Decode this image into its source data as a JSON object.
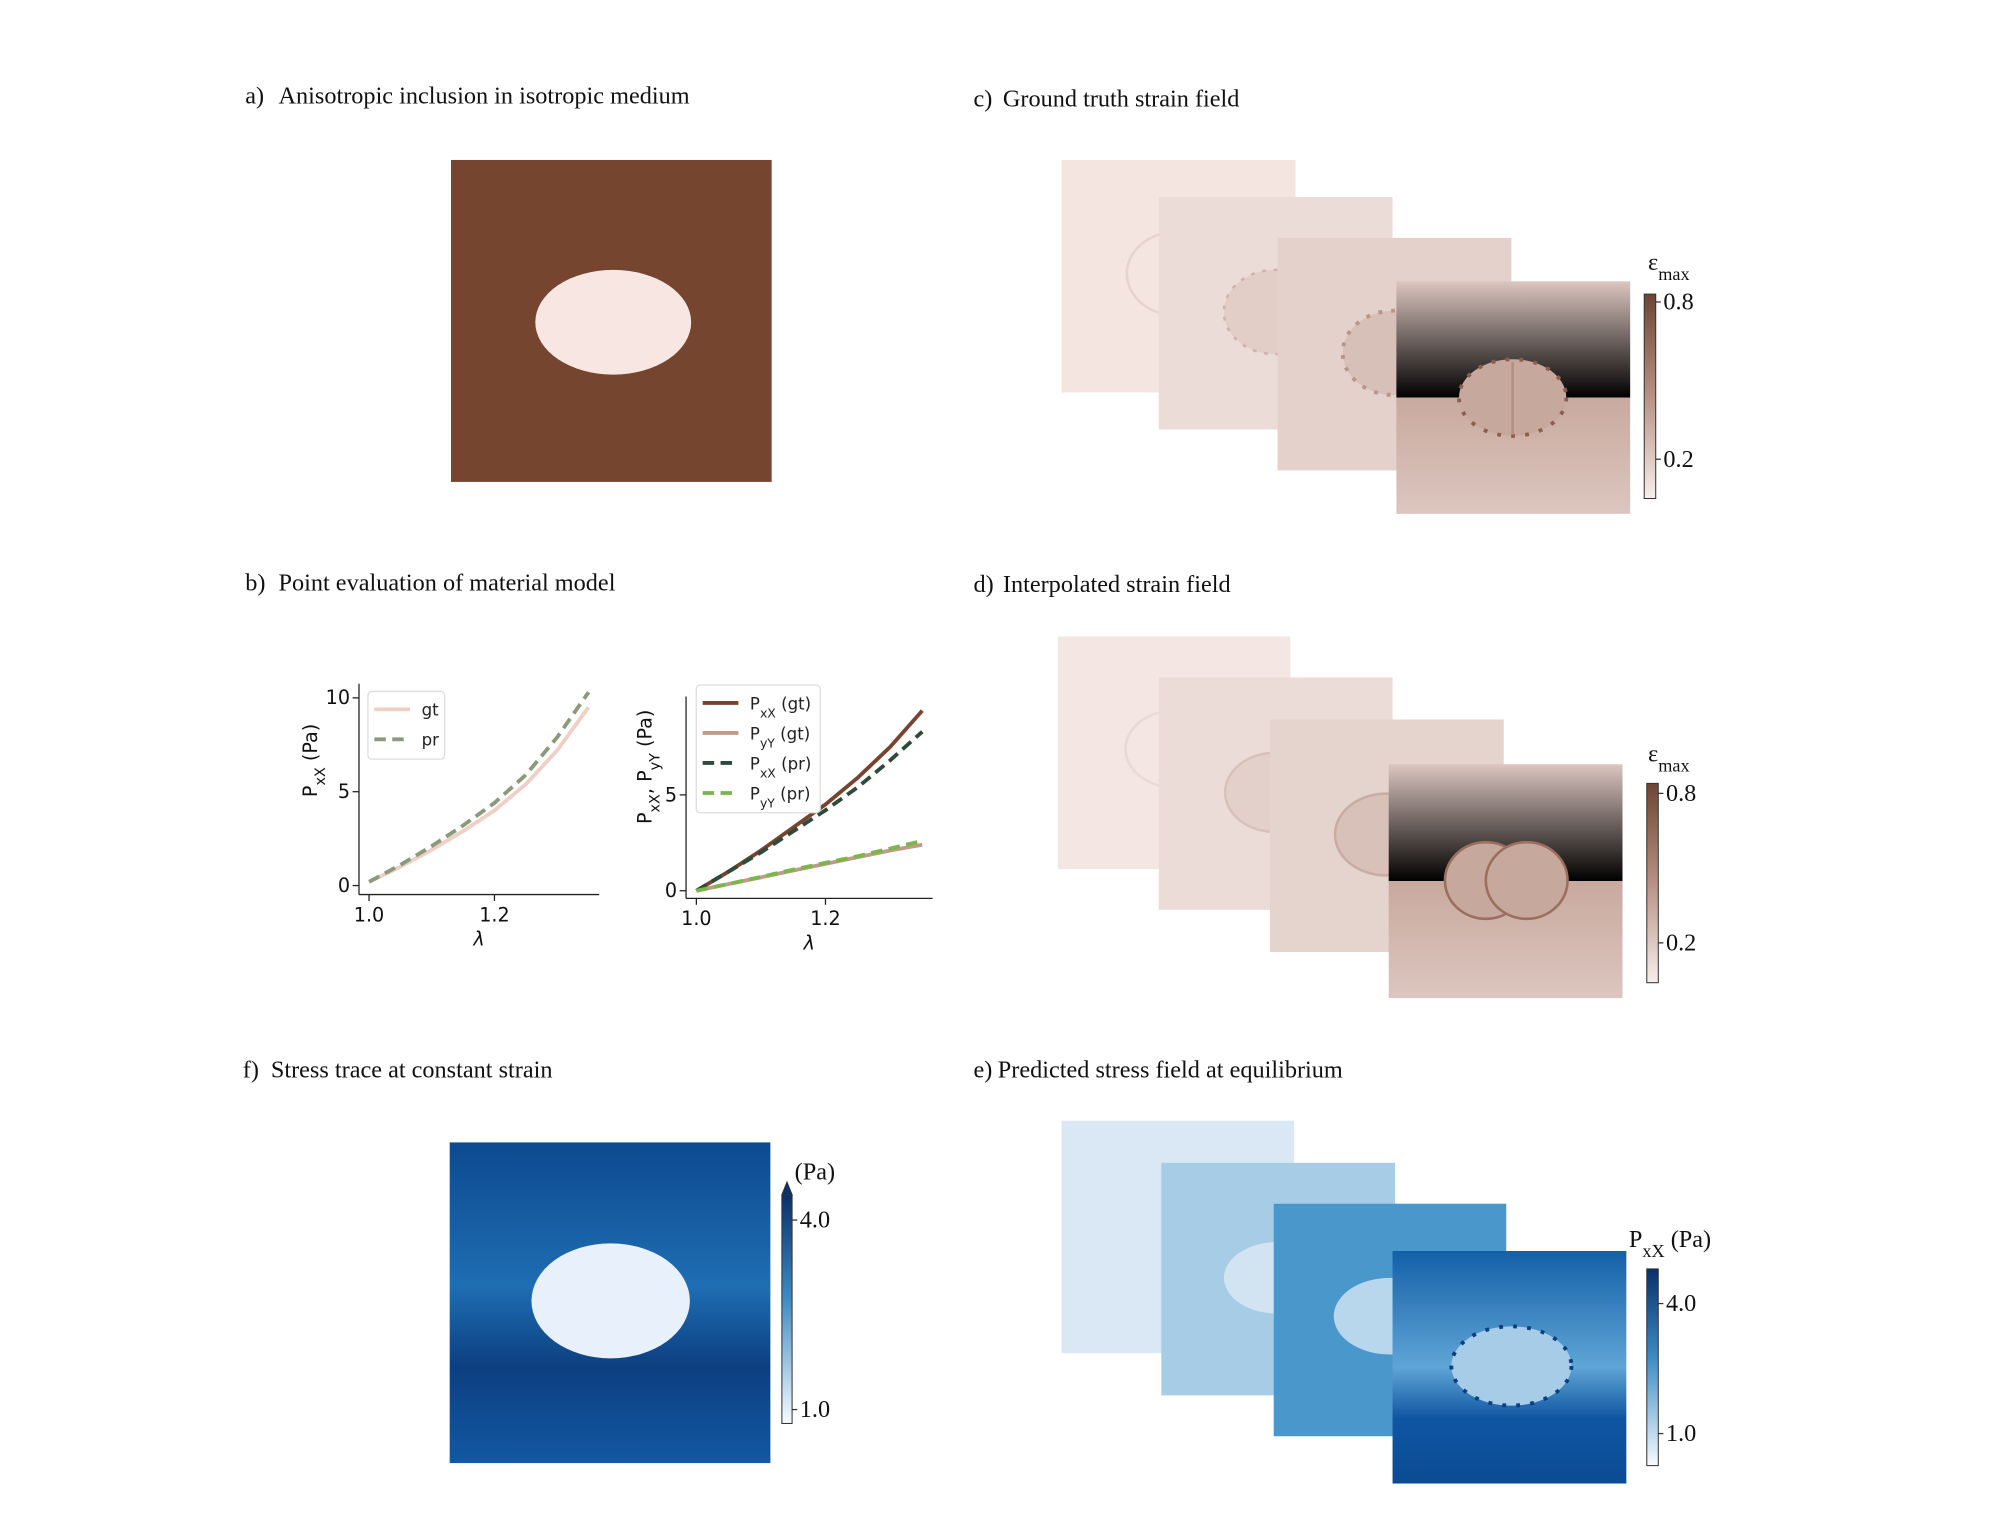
{
  "panels": {
    "a": {
      "label": "a)",
      "title": "Anisotropic inclusion in isotropic medium"
    },
    "b": {
      "label": "b)",
      "title": "Point evaluation of material model"
    },
    "c": {
      "label": "c)",
      "title": "Ground truth strain field",
      "colorbar": {
        "label": "εmax",
        "lim": [
          0.05,
          0.83
        ],
        "ticks": [
          0.2,
          0.8
        ]
      }
    },
    "d": {
      "label": "d)",
      "title": "Interpolated strain field",
      "colorbar": {
        "label": "εmax",
        "lim": [
          0.04,
          0.84
        ],
        "ticks": [
          0.2,
          0.8
        ]
      }
    },
    "f": {
      "label": "f)",
      "title": "Stress trace at constant strain",
      "colorbar": {
        "label": "(Pa)",
        "lim": [
          0.78,
          4.4
        ],
        "ticks": [
          {
            "value": 1,
            "label": "1.0"
          },
          {
            "value": 4,
            "label": "4.0"
          }
        ]
      }
    },
    "e": {
      "label": "e)",
      "title": "Predicted stress field at equilibrium",
      "colorbar": {
        "label": "PxX (Pa)",
        "lim": [
          0.26,
          4.8
        ],
        "ticks": [
          {
            "value": 1,
            "label": "1.0"
          },
          {
            "value": 4,
            "label": "4.0"
          }
        ]
      }
    }
  },
  "chart_data": [
    {
      "type": "line",
      "xlabel": "λ",
      "ylabel": "PxX  (Pa)",
      "x": [
        1.0,
        1.05,
        1.1,
        1.15,
        1.2,
        1.25,
        1.3,
        1.35
      ],
      "xlim": [
        0.984,
        1.367
      ],
      "ylim": [
        -0.48,
        10.75
      ],
      "xticks": [
        {
          "value": 1.0,
          "label": "1.0"
        },
        {
          "value": 1.2,
          "label": "1.2"
        }
      ],
      "yticks": [
        0,
        5,
        10
      ],
      "legend": "upper left",
      "series": [
        {
          "name": "gt",
          "color": "#f0cfc5",
          "style": "solid",
          "values": [
            0.2,
            1.0,
            1.9,
            2.9,
            4.0,
            5.4,
            7.2,
            9.5
          ]
        },
        {
          "name": "pr",
          "color": "#8a9a7a",
          "style": "dashed",
          "values": [
            0.2,
            1.1,
            2.1,
            3.2,
            4.4,
            5.9,
            7.9,
            10.3
          ]
        }
      ]
    },
    {
      "type": "line",
      "xlabel": "λ",
      "ylabel": "PxX, PyY  (Pa)",
      "x": [
        1.0,
        1.05,
        1.1,
        1.15,
        1.2,
        1.25,
        1.3,
        1.35
      ],
      "xlim": [
        0.984,
        1.366
      ],
      "ylim": [
        -0.4,
        10.13
      ],
      "xticks": [
        {
          "value": 1.0,
          "label": "1.0"
        },
        {
          "value": 1.2,
          "label": "1.2"
        }
      ],
      "yticks": [
        0,
        5
      ],
      "legend": "upper left",
      "series": [
        {
          "name": "PxX (gt)",
          "color": "#75452f",
          "style": "solid",
          "values": [
            0,
            1.0,
            2.1,
            3.3,
            4.5,
            5.9,
            7.5,
            9.4
          ]
        },
        {
          "name": "PyY (gt)",
          "color": "#c09a8a",
          "style": "solid",
          "values": [
            0,
            0.35,
            0.7,
            1.05,
            1.4,
            1.75,
            2.1,
            2.4
          ]
        },
        {
          "name": "PxX (pr)",
          "color": "#2d4a3a",
          "style": "dashed",
          "values": [
            0,
            1.0,
            2.0,
            3.1,
            4.2,
            5.4,
            6.8,
            8.3
          ]
        },
        {
          "name": "PyY (pr)",
          "color": "#7ab648",
          "style": "dashed",
          "values": [
            0,
            0.35,
            0.72,
            1.1,
            1.45,
            1.8,
            2.2,
            2.6
          ]
        }
      ]
    }
  ]
}
